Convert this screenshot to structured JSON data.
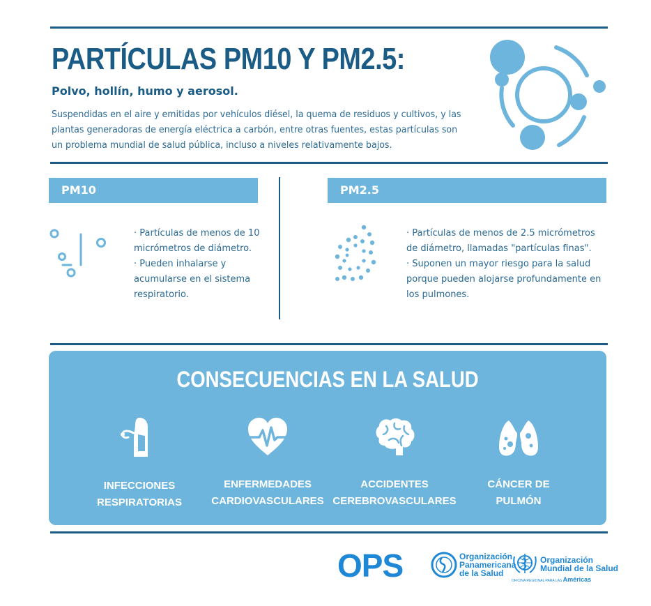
{
  "header": {
    "title": "PARTÍCULAS PM10 Y PM2.5:",
    "subtitle": "Polvo, hollín, humo y aerosol.",
    "intro": "Suspendidas en el aire y emitidas por vehículos diésel, la quema de residuos y cultivos, y las plantas generadoras de energía eléctrica a carbón, entre otras fuentes, estas partículas son un problema mundial de salud pública, incluso a niveles relativamente bajos.",
    "hero_icon": "particles-icon"
  },
  "pm10": {
    "label": "PM10",
    "icon": "coarse-particles-icon",
    "lines": [
      "· Partículas de menos de 10",
      "micrómetros de diámetro.",
      "· Pueden inhalarse y",
      "acumularse en el sistema",
      "respiratorio."
    ]
  },
  "pm25": {
    "label": "PM2.5",
    "icon": "fine-particles-icon",
    "lines": [
      "· Partículas de menos de 2.5 micrómetros",
      "de diámetro, llamadas \"partículas finas\".",
      "· Suponen un mayor riesgo para la salud",
      "porque pueden alojarse profundamente en",
      "los pulmones."
    ]
  },
  "consequences": {
    "title": "CONSECUENCIAS EN LA SALUD",
    "items": [
      {
        "icon": "respiratory-icon",
        "line1": "INFECCIONES",
        "line2": "RESPIRATORIAS"
      },
      {
        "icon": "heart-icon",
        "line1": "ENFERMEDADES",
        "line2": "CARDIOVASCULARES"
      },
      {
        "icon": "brain-icon",
        "line1": "ACCIDENTES",
        "line2": "CEREBROVASCULARES"
      },
      {
        "icon": "lungs-icon",
        "line1": "CÁNCER DE",
        "line2": "PULMÓN"
      }
    ]
  },
  "footer": {
    "ops": "OPS",
    "paho_lines": [
      "Organización",
      "Panamericana",
      "de la Salud"
    ],
    "who_lines": [
      "Organización",
      "Mundial de la Salud"
    ],
    "who_region_prefix": "OFICINA REGIONAL PARA LAS",
    "who_region": "Américas"
  },
  "colors": {
    "dark_blue": "#1a5c86",
    "light_blue": "#6db5dd",
    "logo_blue": "#1e88d6"
  }
}
